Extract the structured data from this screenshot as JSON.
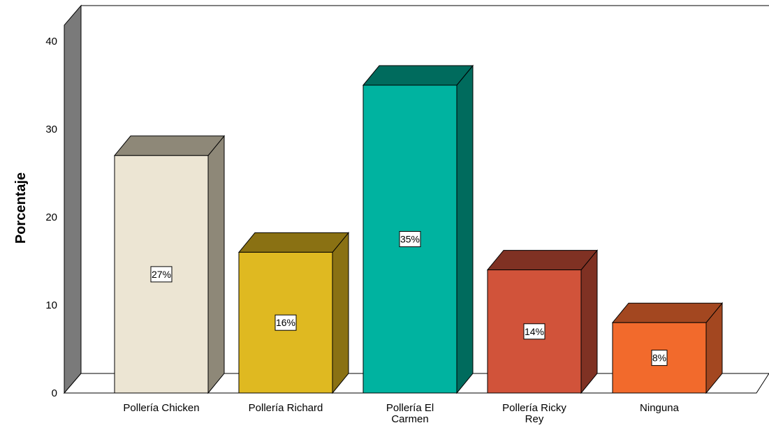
{
  "chart_data": {
    "type": "bar",
    "title": "",
    "xlabel": "",
    "ylabel": "Porcentaje",
    "ylim": [
      0,
      40
    ],
    "yticks": [
      "0",
      "10",
      "20",
      "30",
      "40"
    ],
    "grid": false,
    "legend": "none",
    "three_d": true,
    "categories": [
      [
        "Pollería Chicken"
      ],
      [
        "Pollería Richard"
      ],
      [
        "Pollería El",
        "Carmen"
      ],
      [
        "Pollería Ricky",
        "Rey"
      ],
      [
        "Ninguna"
      ]
    ],
    "values": [
      27,
      16,
      35,
      14,
      8
    ],
    "value_labels": [
      "27%",
      "16%",
      "35%",
      "14%",
      "8%"
    ],
    "colors": [
      {
        "front": "#ece5d3",
        "side": "#8e8878"
      },
      {
        "front": "#dfb921",
        "side": "#8a7113"
      },
      {
        "front": "#00b3a0",
        "side": "#006b5d"
      },
      {
        "front": "#d1533a",
        "side": "#7f3123"
      },
      {
        "front": "#f26a2c",
        "side": "#a34720"
      }
    ],
    "wall_color": "#7a7a7a"
  }
}
